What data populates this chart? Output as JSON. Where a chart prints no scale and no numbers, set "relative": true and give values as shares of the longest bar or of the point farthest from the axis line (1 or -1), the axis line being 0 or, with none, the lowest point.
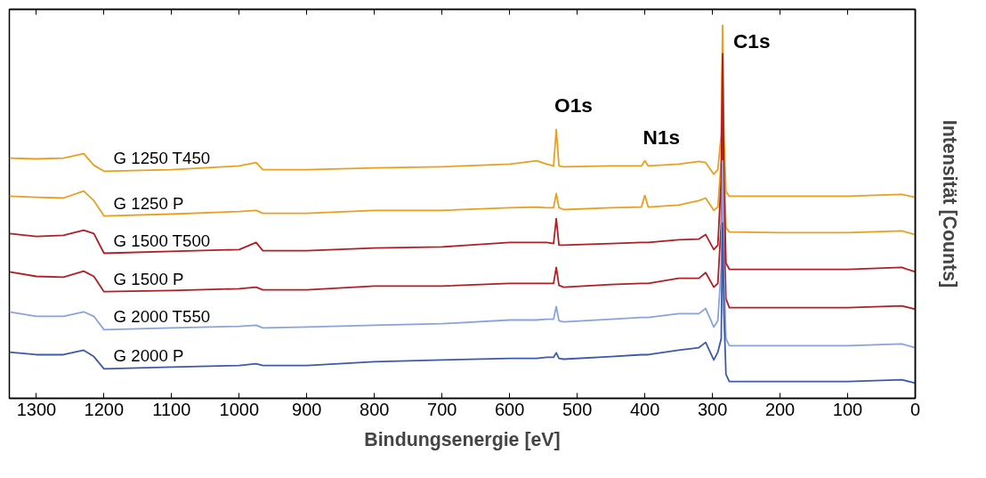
{
  "chart_data": {
    "type": "line",
    "relative": true,
    "xlabel": "Bindungsenergie [eV]",
    "ylabel": "Intensität [Counts]",
    "x": [
      1340,
      1300,
      1260,
      1230,
      1215,
      1200,
      1100,
      1000,
      975,
      965,
      900,
      800,
      700,
      600,
      560,
      545,
      535,
      531,
      527,
      520,
      450,
      405,
      400,
      395,
      350,
      320,
      310,
      298,
      292,
      287,
      285,
      283,
      280,
      275,
      200,
      100,
      20,
      0
    ],
    "xlim": [
      1340,
      0
    ],
    "xticks": [
      1300,
      1200,
      1100,
      1000,
      900,
      800,
      700,
      600,
      500,
      400,
      300,
      200,
      100,
      0
    ],
    "grid": false,
    "legend": false,
    "tick_labels": "x",
    "marker": "none",
    "line_style": "solid",
    "series": [
      {
        "name": "G 1250 T450",
        "color": "#e8a01e",
        "values": [
          0.644,
          0.642,
          0.644,
          0.656,
          0.625,
          0.609,
          0.613,
          0.623,
          0.632,
          0.613,
          0.613,
          0.618,
          0.621,
          0.628,
          0.637,
          0.628,
          0.623,
          0.721,
          0.623,
          0.621,
          0.623,
          0.623,
          0.637,
          0.623,
          0.628,
          0.635,
          0.632,
          0.601,
          0.613,
          0.709,
          1,
          0.709,
          0.554,
          0.542,
          0.542,
          0.542,
          0.547,
          0.539
        ]
      },
      {
        "name": "G 1250 P",
        "color": "#e8a01e",
        "values": [
          0.542,
          0.539,
          0.537,
          0.556,
          0.53,
          0.489,
          0.494,
          0.501,
          0.504,
          0.496,
          0.496,
          0.504,
          0.504,
          0.511,
          0.513,
          0.511,
          0.511,
          0.549,
          0.511,
          0.506,
          0.511,
          0.513,
          0.544,
          0.513,
          0.518,
          0.53,
          0.537,
          0.504,
          0.513,
          0.637,
          0.924,
          0.637,
          0.458,
          0.446,
          0.444,
          0.444,
          0.449,
          0.439
        ]
      },
      {
        "name": "G 1500 T500",
        "color": "#b01f24",
        "values": [
          0.442,
          0.434,
          0.437,
          0.451,
          0.442,
          0.389,
          0.394,
          0.399,
          0.418,
          0.396,
          0.396,
          0.403,
          0.406,
          0.418,
          0.418,
          0.418,
          0.415,
          0.482,
          0.411,
          0.411,
          0.415,
          0.418,
          0.418,
          0.418,
          0.425,
          0.427,
          0.439,
          0.399,
          0.411,
          0.589,
          0.924,
          0.589,
          0.363,
          0.346,
          0.346,
          0.346,
          0.351,
          0.339
        ]
      },
      {
        "name": "G 1500 P",
        "color": "#b01f24",
        "values": [
          0.339,
          0.327,
          0.325,
          0.341,
          0.327,
          0.286,
          0.289,
          0.294,
          0.298,
          0.291,
          0.291,
          0.301,
          0.301,
          0.308,
          0.308,
          0.308,
          0.308,
          0.351,
          0.303,
          0.298,
          0.305,
          0.308,
          0.308,
          0.308,
          0.322,
          0.322,
          0.337,
          0.298,
          0.308,
          0.47,
          0.828,
          0.47,
          0.267,
          0.243,
          0.243,
          0.243,
          0.248,
          0.239
        ]
      },
      {
        "name": "G 2000 T550",
        "color": "#8aa3dc",
        "values": [
          0.232,
          0.22,
          0.22,
          0.232,
          0.22,
          0.184,
          0.189,
          0.193,
          0.196,
          0.189,
          0.191,
          0.196,
          0.2,
          0.21,
          0.21,
          0.212,
          0.212,
          0.246,
          0.208,
          0.205,
          0.212,
          0.217,
          0.217,
          0.217,
          0.227,
          0.227,
          0.241,
          0.191,
          0.208,
          0.351,
          0.637,
          0.351,
          0.16,
          0.141,
          0.141,
          0.141,
          0.146,
          0.136
        ]
      },
      {
        "name": "G 2000 P",
        "color": "#3c5aa8",
        "values": [
          0.124,
          0.117,
          0.117,
          0.129,
          0.112,
          0.079,
          0.084,
          0.088,
          0.093,
          0.088,
          0.088,
          0.098,
          0.103,
          0.107,
          0.107,
          0.11,
          0.11,
          0.122,
          0.107,
          0.105,
          0.112,
          0.117,
          0.117,
          0.117,
          0.129,
          0.136,
          0.15,
          0.103,
          0.124,
          0.16,
          0.47,
          0.231,
          0.064,
          0.045,
          0.045,
          0.045,
          0.05,
          0.041
        ]
      }
    ],
    "annotations": [
      {
        "text": "O1s",
        "x": 531,
        "y": 0.721
      },
      {
        "text": "N1s",
        "x": 400,
        "y": 0.637
      },
      {
        "text": "C1s",
        "x": 285,
        "y": 1
      }
    ]
  }
}
